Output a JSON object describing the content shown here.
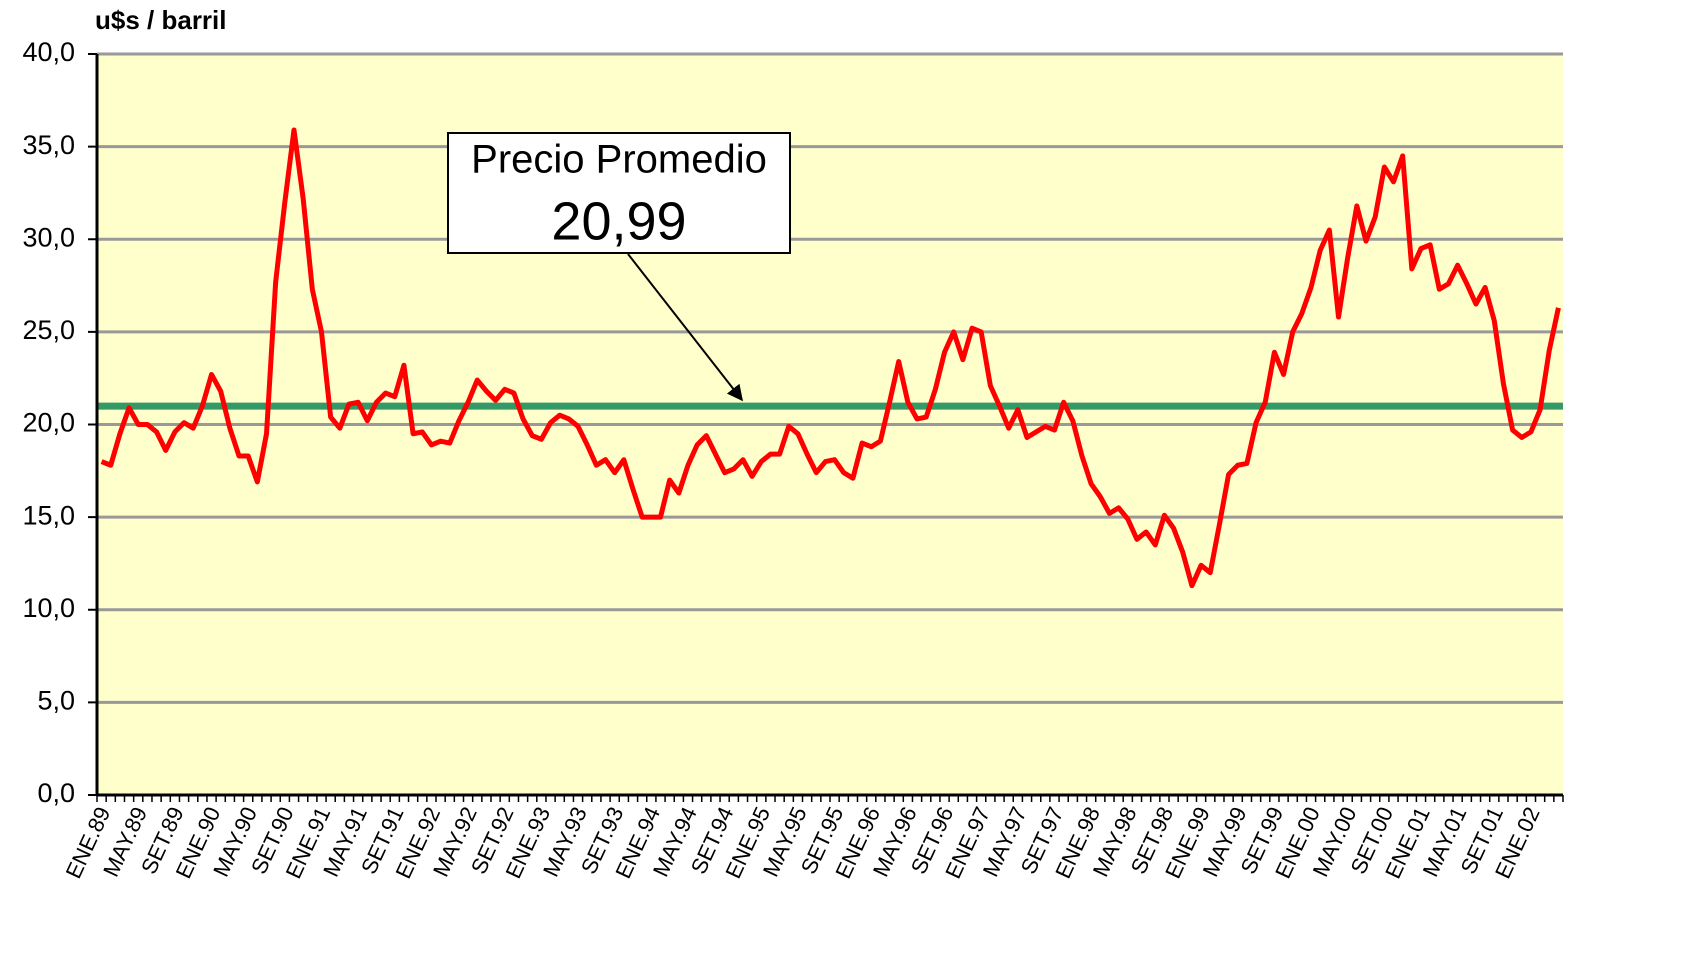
{
  "chart_data": {
    "type": "line",
    "y_axis_label": "u$s / barril",
    "categories": [
      "ENE.89",
      null,
      null,
      null,
      "MAY.89",
      null,
      null,
      null,
      "SET.89",
      null,
      null,
      null,
      "ENE.90",
      null,
      null,
      null,
      "MAY.90",
      null,
      null,
      null,
      "SET.90",
      null,
      null,
      null,
      "ENE.91",
      null,
      null,
      null,
      "MAY.91",
      null,
      null,
      null,
      "SET.91",
      null,
      null,
      null,
      "ENE.92",
      null,
      null,
      null,
      "MAY.92",
      null,
      null,
      null,
      "SET.92",
      null,
      null,
      null,
      "ENE.93",
      null,
      null,
      null,
      "MAY.93",
      null,
      null,
      null,
      "SET.93",
      null,
      null,
      null,
      "ENE.94",
      null,
      null,
      null,
      "MAY.94",
      null,
      null,
      null,
      "SET.94",
      null,
      null,
      null,
      "ENE.95",
      null,
      null,
      null,
      "MAY.95",
      null,
      null,
      null,
      "SET.95",
      null,
      null,
      null,
      "ENE.96",
      null,
      null,
      null,
      "MAY.96",
      null,
      null,
      null,
      "SET.96",
      null,
      null,
      null,
      "ENE.97",
      null,
      null,
      null,
      "MAY.97",
      null,
      null,
      null,
      "SET.97",
      null,
      null,
      null,
      "ENE.98",
      null,
      null,
      null,
      "MAY.98",
      null,
      null,
      null,
      "SET.98",
      null,
      null,
      null,
      "ENE.99",
      null,
      null,
      null,
      "MAY.99",
      null,
      null,
      null,
      "SET.99",
      null,
      null,
      null,
      "ENE.00",
      null,
      null,
      null,
      "MAY.00",
      null,
      null,
      null,
      "SET.00",
      null,
      null,
      null,
      "ENE.01",
      null,
      null,
      null,
      "MAY.01",
      null,
      null,
      null,
      "SET.01",
      null,
      null,
      null,
      "ENE.02",
      null,
      null,
      null
    ],
    "series": [
      {
        "color": "#ff0000",
        "values": [
          18.0,
          17.8,
          19.5,
          20.9,
          20.0,
          20.0,
          19.6,
          18.6,
          19.6,
          20.1,
          19.8,
          21.0,
          22.7,
          21.8,
          19.8,
          18.3,
          18.3,
          16.9,
          19.5,
          27.7,
          32.0,
          35.9,
          32.2,
          27.3,
          25.0,
          20.4,
          19.8,
          21.1,
          21.2,
          20.2,
          21.2,
          21.7,
          21.5,
          23.2,
          19.5,
          19.6,
          18.9,
          19.1,
          19.0,
          20.2,
          21.2,
          22.4,
          21.8,
          21.3,
          21.9,
          21.7,
          20.3,
          19.4,
          19.2,
          20.1,
          20.5,
          20.3,
          19.9,
          18.9,
          17.8,
          18.1,
          17.4,
          18.1,
          16.5,
          15.0,
          15.0,
          15.0,
          17.0,
          16.3,
          17.8,
          18.9,
          19.4,
          18.4,
          17.4,
          17.6,
          18.1,
          17.2,
          18.0,
          18.4,
          18.4,
          19.9,
          19.5,
          18.4,
          17.4,
          18.0,
          18.1,
          17.4,
          17.1,
          19.0,
          18.8,
          19.1,
          21.2,
          23.4,
          21.2,
          20.3,
          20.4,
          21.9,
          23.9,
          25.0,
          23.5,
          25.2,
          25.0,
          22.1,
          21.0,
          19.8,
          20.8,
          19.3,
          19.6,
          19.9,
          19.7,
          21.2,
          20.2,
          18.3,
          16.8,
          16.1,
          15.2,
          15.5,
          14.9,
          13.8,
          14.2,
          13.5,
          15.1,
          14.4,
          13.1,
          11.3,
          12.4,
          12.0,
          14.6,
          17.3,
          17.8,
          17.9,
          20.1,
          21.2,
          23.9,
          22.7,
          25.0,
          26.0,
          27.4,
          29.4,
          30.5,
          25.8,
          29.0,
          31.8,
          29.9,
          31.2,
          33.9,
          33.1,
          34.5,
          28.4,
          29.5,
          29.7,
          27.3,
          27.6,
          28.6,
          27.6,
          26.5,
          27.4,
          25.6,
          22.2,
          19.7,
          19.3,
          19.6,
          20.8,
          24.0,
          26.3
        ]
      }
    ],
    "average": {
      "text": "Precio Promedio",
      "value": 20.99,
      "label": "20,99",
      "color": "#339966"
    },
    "ylim": [
      0,
      40
    ],
    "yticks": [
      {
        "value": 0,
        "label": "0,0"
      },
      {
        "value": 5,
        "label": "5,0"
      },
      {
        "value": 10,
        "label": "10,0"
      },
      {
        "value": 15,
        "label": "15,0"
      },
      {
        "value": 20,
        "label": "20,0"
      },
      {
        "value": 25,
        "label": "25,0"
      },
      {
        "value": 30,
        "label": "30,0"
      },
      {
        "value": 35,
        "label": "35,0"
      },
      {
        "value": 40,
        "label": "40,0"
      }
    ],
    "grid": true,
    "background": "#ffffcc"
  }
}
